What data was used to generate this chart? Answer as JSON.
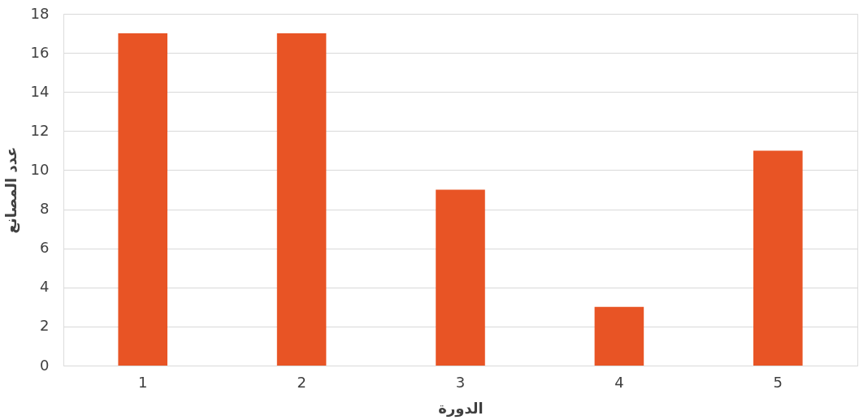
{
  "chart_data": {
    "type": "bar",
    "xlabel": "الدورة",
    "ylabel": "عدد المصانع",
    "categories": [
      "1",
      "2",
      "3",
      "4",
      "5"
    ],
    "values": [
      17,
      17,
      9,
      3,
      11
    ],
    "color": "#e85425",
    "ylim": [
      0,
      18
    ],
    "yticks": [
      0,
      2,
      4,
      6,
      8,
      10,
      12,
      14,
      16,
      18
    ],
    "grid": "y"
  }
}
